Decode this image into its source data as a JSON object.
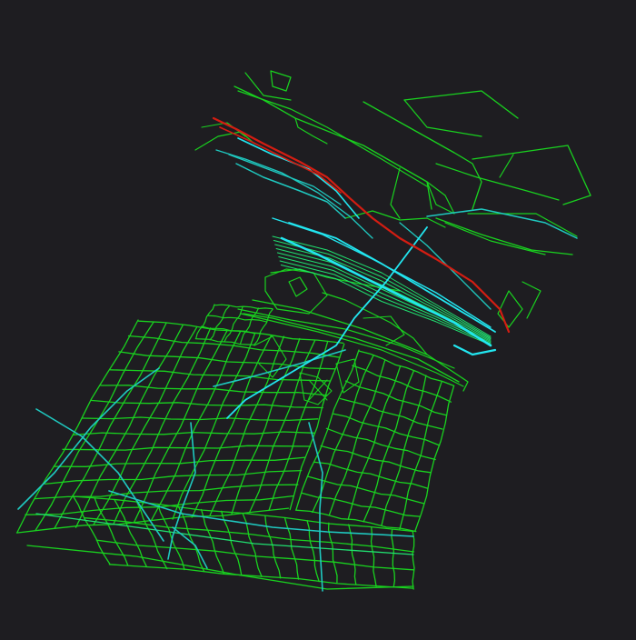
{
  "map": {
    "background": "#1e1d21",
    "style": "street-network",
    "colors": {
      "minor_street": "#19d21f",
      "secondary_street": "#20e070",
      "arterial": "#1fc9c0",
      "major": "#22e6f0",
      "railway": "#d41d12"
    },
    "layers": [
      "minor_street",
      "secondary_street",
      "arterial",
      "major",
      "railway"
    ]
  }
}
